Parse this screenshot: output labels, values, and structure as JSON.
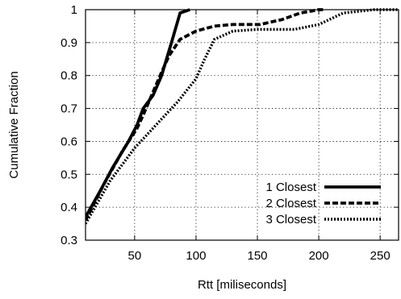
{
  "chart_data": {
    "type": "line",
    "xlabel": "Rtt [miliseconds]",
    "ylabel": "Cumulative Fraction",
    "xlim": [
      10,
      265
    ],
    "ylim": [
      0.3,
      1.0
    ],
    "x_ticks": [
      50,
      100,
      150,
      200,
      250
    ],
    "y_ticks": [
      0.3,
      0.4,
      0.5,
      0.6,
      0.7,
      0.8,
      0.9,
      1.0
    ],
    "x_tick_labels": [
      "50",
      "100",
      "150",
      "200",
      "250"
    ],
    "y_tick_labels": [
      "0.3",
      "0.4",
      "0.5",
      "0.6",
      "0.7",
      "0.8",
      "0.9",
      "1"
    ],
    "grid": true,
    "legend_position": "bottom-right",
    "series": [
      {
        "name": "1 Closest",
        "style": "solid",
        "color": "#000000",
        "points": [
          [
            10,
            0.37
          ],
          [
            22,
            0.45
          ],
          [
            32,
            0.52
          ],
          [
            45,
            0.6
          ],
          [
            52,
            0.65
          ],
          [
            57,
            0.7
          ],
          [
            65,
            0.74
          ],
          [
            72,
            0.8
          ],
          [
            80,
            0.9
          ],
          [
            87,
            0.99
          ],
          [
            95,
            1.0
          ]
        ]
      },
      {
        "name": "2 Closest",
        "style": "dashed",
        "color": "#000000",
        "points": [
          [
            10,
            0.36
          ],
          [
            25,
            0.47
          ],
          [
            40,
            0.57
          ],
          [
            52,
            0.64
          ],
          [
            57,
            0.68
          ],
          [
            65,
            0.75
          ],
          [
            72,
            0.81
          ],
          [
            78,
            0.86
          ],
          [
            87,
            0.91
          ],
          [
            100,
            0.935
          ],
          [
            115,
            0.95
          ],
          [
            130,
            0.955
          ],
          [
            152,
            0.955
          ],
          [
            170,
            0.97
          ],
          [
            185,
            0.99
          ],
          [
            200,
            1.0
          ],
          [
            205,
            1.0
          ]
        ]
      },
      {
        "name": "3 Closest",
        "style": "dotted",
        "color": "#000000",
        "points": [
          [
            10,
            0.35
          ],
          [
            30,
            0.48
          ],
          [
            50,
            0.58
          ],
          [
            70,
            0.66
          ],
          [
            85,
            0.72
          ],
          [
            100,
            0.79
          ],
          [
            107,
            0.85
          ],
          [
            115,
            0.91
          ],
          [
            130,
            0.935
          ],
          [
            150,
            0.94
          ],
          [
            180,
            0.94
          ],
          [
            200,
            0.955
          ],
          [
            220,
            0.99
          ],
          [
            245,
            1.0
          ],
          [
            265,
            1.0
          ]
        ]
      }
    ]
  }
}
